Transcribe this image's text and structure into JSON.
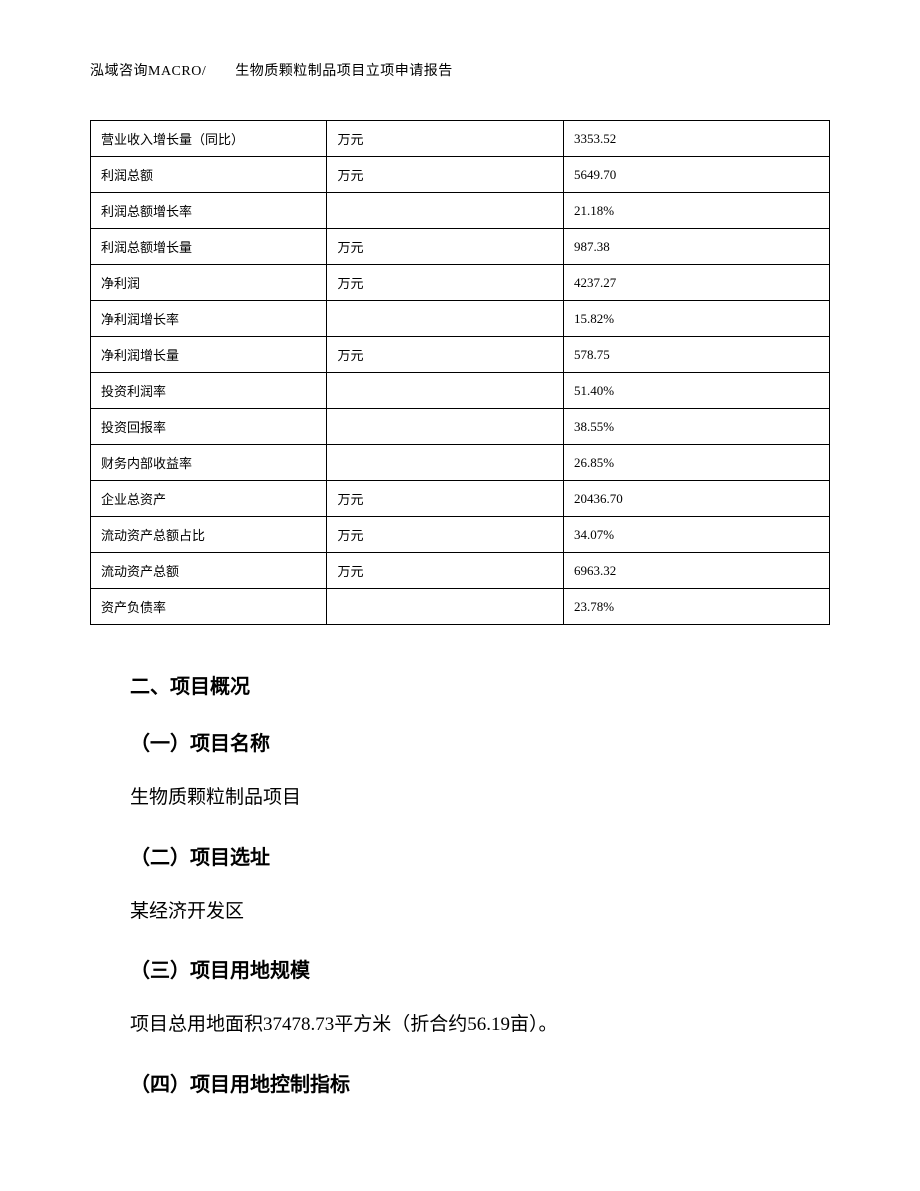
{
  "header": {
    "text": "泓域咨询MACRO/　　生物质颗粒制品项目立项申请报告"
  },
  "table": {
    "rows": [
      {
        "label": "营业收入增长量（同比）",
        "unit": "万元",
        "value": "3353.52"
      },
      {
        "label": "利润总额",
        "unit": "万元",
        "value": "5649.70"
      },
      {
        "label": "利润总额增长率",
        "unit": "",
        "value": "21.18%"
      },
      {
        "label": "利润总额增长量",
        "unit": "万元",
        "value": "987.38"
      },
      {
        "label": "净利润",
        "unit": "万元",
        "value": "4237.27"
      },
      {
        "label": "净利润增长率",
        "unit": "",
        "value": "15.82%"
      },
      {
        "label": "净利润增长量",
        "unit": "万元",
        "value": "578.75"
      },
      {
        "label": "投资利润率",
        "unit": "",
        "value": "51.40%"
      },
      {
        "label": "投资回报率",
        "unit": "",
        "value": "38.55%"
      },
      {
        "label": "财务内部收益率",
        "unit": "",
        "value": "26.85%"
      },
      {
        "label": "企业总资产",
        "unit": "万元",
        "value": "20436.70"
      },
      {
        "label": "流动资产总额占比",
        "unit": "万元",
        "value": "34.07%"
      },
      {
        "label": "流动资产总额",
        "unit": "万元",
        "value": "6963.32"
      },
      {
        "label": "资产负债率",
        "unit": "",
        "value": "23.78%"
      }
    ]
  },
  "section": {
    "title": "二、项目概况",
    "sub1_title": "（一）项目名称",
    "sub1_text": "生物质颗粒制品项目",
    "sub2_title": "（二）项目选址",
    "sub2_text": "某经济开发区",
    "sub3_title": "（三）项目用地规模",
    "sub3_text": "项目总用地面积37478.73平方米（折合约56.19亩）。",
    "sub4_title": "（四）项目用地控制指标"
  },
  "style": {
    "text_color": "#000000",
    "background_color": "#ffffff",
    "border_color": "#000000",
    "header_fontsize": 14,
    "table_fontsize": 13,
    "section_title_fontsize": 20,
    "body_fontsize": 19
  }
}
